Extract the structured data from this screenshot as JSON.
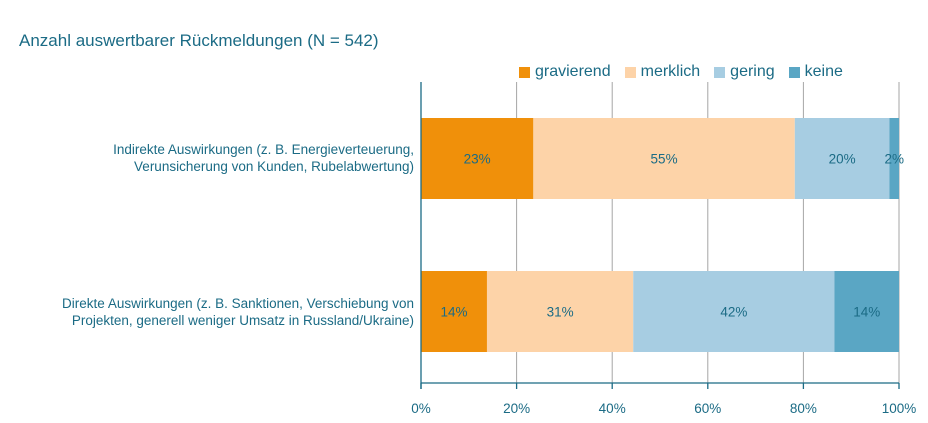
{
  "chart_data": {
    "type": "bar",
    "orientation": "horizontal",
    "stacked": true,
    "title": "Anzahl auswertbarer Rückmeldungen (N = 542)",
    "categories": [
      [
        "Indirekte Auswirkungen (z. B. Energieverteuerung,",
        "Verunsicherung von Kunden, Rubelabwertung)"
      ],
      [
        "Direkte Auswirkungen (z. B. Sanktionen, Verschiebung von",
        "Projekten, generell weniger Umsatz in Russland/Ukraine)"
      ]
    ],
    "series": [
      {
        "name": "gravierend",
        "color": "#f0900a",
        "values": [
          23.5,
          13.8
        ],
        "labels": [
          "23%",
          "14%"
        ]
      },
      {
        "name": "merklich",
        "color": "#fdd3a8",
        "values": [
          54.7,
          30.6
        ],
        "labels": [
          "55%",
          "31%"
        ]
      },
      {
        "name": "gering",
        "color": "#a7cde2",
        "values": [
          19.8,
          42.1
        ],
        "labels": [
          "20%",
          "42%"
        ]
      },
      {
        "name": "keine",
        "color": "#5aa6c4",
        "values": [
          2.0,
          13.5
        ],
        "labels": [
          "2%",
          "14%"
        ]
      }
    ],
    "xlim": [
      0,
      100
    ],
    "xticks": [
      "0%",
      "20%",
      "40%",
      "60%",
      "80%",
      "100%"
    ],
    "grid": true,
    "legend": "top"
  }
}
